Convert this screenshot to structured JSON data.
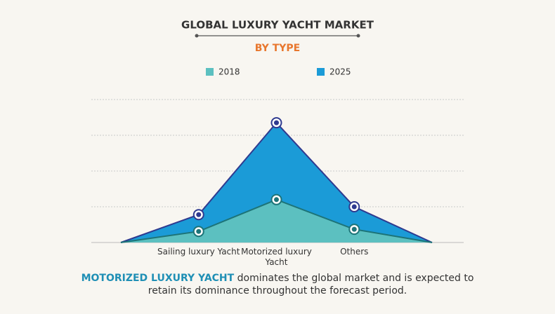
{
  "chart_data": {
    "type": "area",
    "title": "GLOBAL LUXURY YACHT MARKET",
    "subtitle": "BY TYPE",
    "categories": [
      null,
      "Sailing luxury Yacht",
      "Motorized luxury Yacht",
      "Others",
      null
    ],
    "series": [
      {
        "name": "2018",
        "color": "#5cc0c0",
        "line_color": "#1d7478",
        "values": [
          0,
          0.31,
          1.2,
          0.37,
          0
        ]
      },
      {
        "name": "2025",
        "color": "#1b9bd7",
        "line_color": "#2f3a8f",
        "values": [
          0,
          0.78,
          3.35,
          1.0,
          0
        ]
      }
    ],
    "ylim": [
      0,
      4
    ],
    "yticks": [
      1,
      2,
      3,
      4
    ],
    "grid": true,
    "footnote": {
      "highlight": "MOTORIZED LUXURY YACHT",
      "text": "dominates the global market and is expected to retain its dominance throughout the forecast period."
    }
  }
}
